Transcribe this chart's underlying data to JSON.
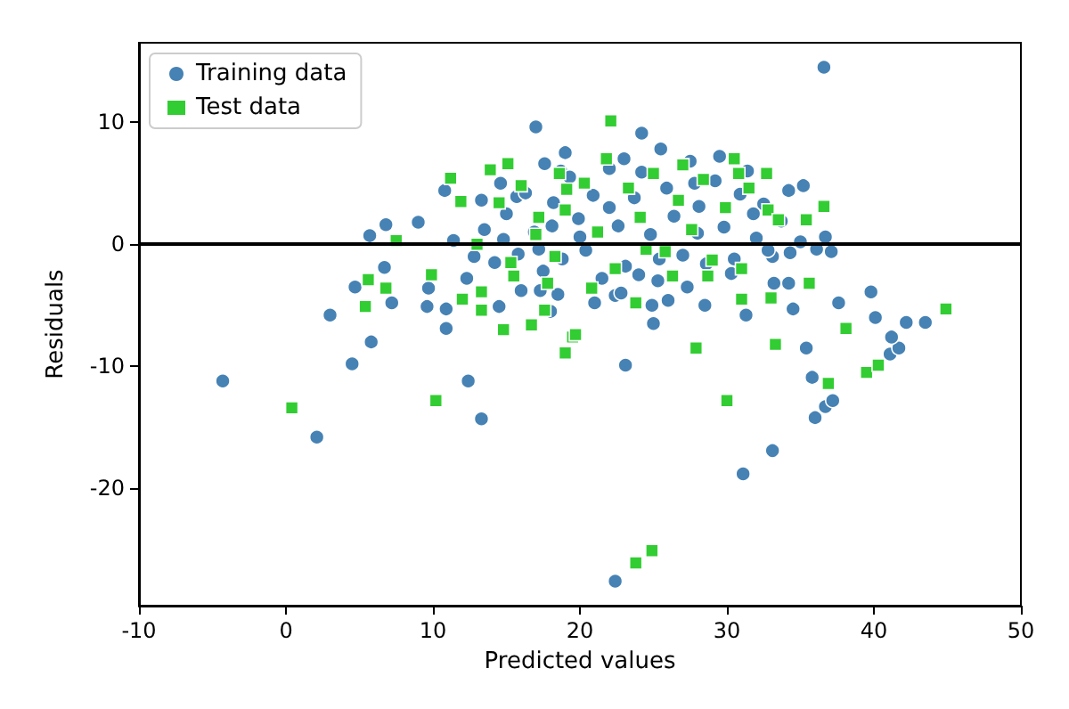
{
  "chart_data": {
    "type": "scatter",
    "xlabel": "Predicted values",
    "ylabel": "Residuals",
    "xlim": [
      -10,
      50
    ],
    "ylim": [
      -29.6,
      16.5
    ],
    "xticks": [
      -10,
      0,
      10,
      20,
      30,
      40,
      50
    ],
    "yticks": [
      -20,
      -10,
      0,
      10
    ],
    "grid": false,
    "legend": "top left",
    "ref_lines": [
      {
        "axis": "y",
        "value": 0,
        "color": "#000000"
      }
    ],
    "series": [
      {
        "name": "Training data",
        "color": "#4682b4",
        "marker": "circle",
        "x": [
          -4.3,
          4.5,
          5.8,
          2.1,
          12.4,
          13.3,
          23.1,
          31.1,
          33.1,
          22.4,
          35.4,
          35.8,
          36.0,
          36.7,
          37.2,
          41.1,
          41.7,
          36.6,
          24.2,
          39.8,
          40.1,
          42.2,
          43.5,
          41.2,
          37.6,
          34.5,
          33.2,
          34.2,
          31.3,
          28.5,
          24.9,
          22.4,
          25.4,
          35.2,
          36.7,
          37.1,
          36.1,
          34.3,
          17.0,
          3.0,
          4.7,
          6.7,
          7.2,
          5.7,
          6.8,
          9.0,
          9.6,
          9.7,
          10.9,
          10.9,
          10.8,
          11.4,
          12.3,
          13.3,
          14.5,
          14.6,
          15.7,
          17.6,
          18.7,
          18.1,
          17.3,
          18.5,
          13.5,
          14.2,
          15.0,
          15.8,
          16.3,
          16.9,
          17.5,
          18.2,
          18.8,
          19.3,
          19.9,
          20.4,
          20.9,
          21.5,
          22.0,
          22.6,
          23.1,
          23.7,
          24.2,
          24.8,
          25.3,
          25.9,
          26.4,
          27.0,
          27.5,
          28.1,
          28.6,
          29.2,
          29.8,
          30.3,
          30.9,
          31.4,
          32.0,
          32.5,
          33.1,
          33.7,
          34.2,
          21.0,
          18.0,
          26.0,
          28.0,
          24.0,
          20.0,
          16.0,
          22.0,
          27.8,
          19.0,
          23.0,
          25.5,
          29.5,
          31.8,
          30.5,
          35.0,
          12.8,
          14.8,
          17.2,
          22.8,
          25.0,
          27.3,
          32.8
        ],
        "values": [
          -11.2,
          -9.8,
          -8.0,
          -15.8,
          -11.2,
          -14.3,
          -9.9,
          -18.8,
          -16.9,
          -27.6,
          -8.5,
          -10.9,
          -14.2,
          -13.3,
          -12.8,
          -9.0,
          -8.5,
          14.5,
          9.1,
          -3.9,
          -6.0,
          -6.4,
          -6.4,
          -7.6,
          -4.8,
          -5.3,
          -3.2,
          -3.2,
          -5.8,
          -5.0,
          -5.0,
          -4.2,
          -1.2,
          4.8,
          0.6,
          -0.6,
          -0.4,
          -0.7,
          9.6,
          -5.8,
          -3.5,
          -1.9,
          -4.8,
          0.7,
          1.6,
          1.8,
          -5.1,
          -3.6,
          -5.3,
          -6.9,
          4.4,
          0.3,
          -2.8,
          3.6,
          -5.1,
          5.0,
          3.9,
          6.6,
          6.0,
          1.5,
          -3.8,
          -4.1,
          1.2,
          -1.5,
          2.5,
          -0.8,
          4.2,
          1.0,
          -2.2,
          3.4,
          -1.2,
          5.5,
          2.1,
          -0.5,
          4.0,
          -2.8,
          6.2,
          1.5,
          -1.8,
          3.8,
          5.9,
          0.8,
          -3.0,
          4.6,
          2.3,
          -0.9,
          6.8,
          3.1,
          -1.6,
          5.2,
          1.4,
          -2.4,
          4.1,
          6.0,
          0.5,
          3.3,
          -1.0,
          1.9,
          4.4,
          -4.8,
          -5.5,
          -4.6,
          0.9,
          -2.5,
          0.6,
          -3.8,
          3.0,
          5.0,
          7.5,
          7.0,
          7.8,
          7.2,
          2.5,
          -1.2,
          0.2,
          -1.0,
          0.4,
          -0.4,
          -4.0,
          -6.5,
          -3.5,
          -0.5
        ]
      },
      {
        "name": "Test data",
        "color": "#32cd32",
        "marker": "square",
        "x": [
          0.4,
          10.2,
          19.0,
          23.8,
          24.9,
          27.9,
          33.3,
          30.0,
          36.9,
          39.5,
          40.3,
          22.1,
          44.9,
          38.1,
          35.6,
          33.0,
          31.0,
          31.0,
          28.7,
          36.6,
          35.4,
          32.8,
          32.7,
          30.5,
          30.8,
          19.5,
          11.2,
          7.5,
          5.4,
          5.6,
          6.8,
          9.9,
          11.9,
          12.0,
          13.3,
          13.3,
          13.9,
          14.8,
          15.1,
          16.7,
          17.6,
          14.5,
          17.2,
          19.1,
          15.3,
          19.7,
          16.0,
          17.0,
          18.3,
          19.0,
          20.3,
          21.2,
          22.4,
          23.3,
          24.1,
          25.0,
          25.8,
          26.7,
          27.6,
          28.4,
          29.0,
          29.9,
          31.5,
          33.5,
          17.8,
          20.8,
          23.8,
          26.3,
          21.8,
          27.0,
          24.5,
          18.6,
          13.0,
          15.5
        ],
        "values": [
          -13.4,
          -12.8,
          -8.9,
          -26.1,
          -25.1,
          -8.5,
          -8.2,
          -12.8,
          -11.4,
          -10.5,
          -9.9,
          10.1,
          -5.3,
          -6.9,
          -3.2,
          -4.4,
          -4.5,
          -2.0,
          -2.6,
          3.1,
          2.0,
          2.8,
          5.8,
          7.0,
          5.8,
          -7.6,
          5.4,
          0.3,
          -5.1,
          -2.9,
          -3.6,
          -2.5,
          3.5,
          -4.5,
          -3.9,
          -5.4,
          6.1,
          -7.0,
          6.6,
          -6.6,
          -5.4,
          3.4,
          2.2,
          4.5,
          -1.5,
          -7.4,
          4.8,
          0.8,
          -1.0,
          2.8,
          5.0,
          1.0,
          -2.0,
          4.6,
          2.2,
          5.8,
          -0.6,
          3.6,
          1.2,
          5.3,
          -1.3,
          3.0,
          4.6,
          2.0,
          -3.2,
          -3.6,
          -4.8,
          -2.6,
          7.0,
          6.5,
          -0.4,
          5.8,
          0.0,
          -2.6
        ]
      }
    ]
  }
}
